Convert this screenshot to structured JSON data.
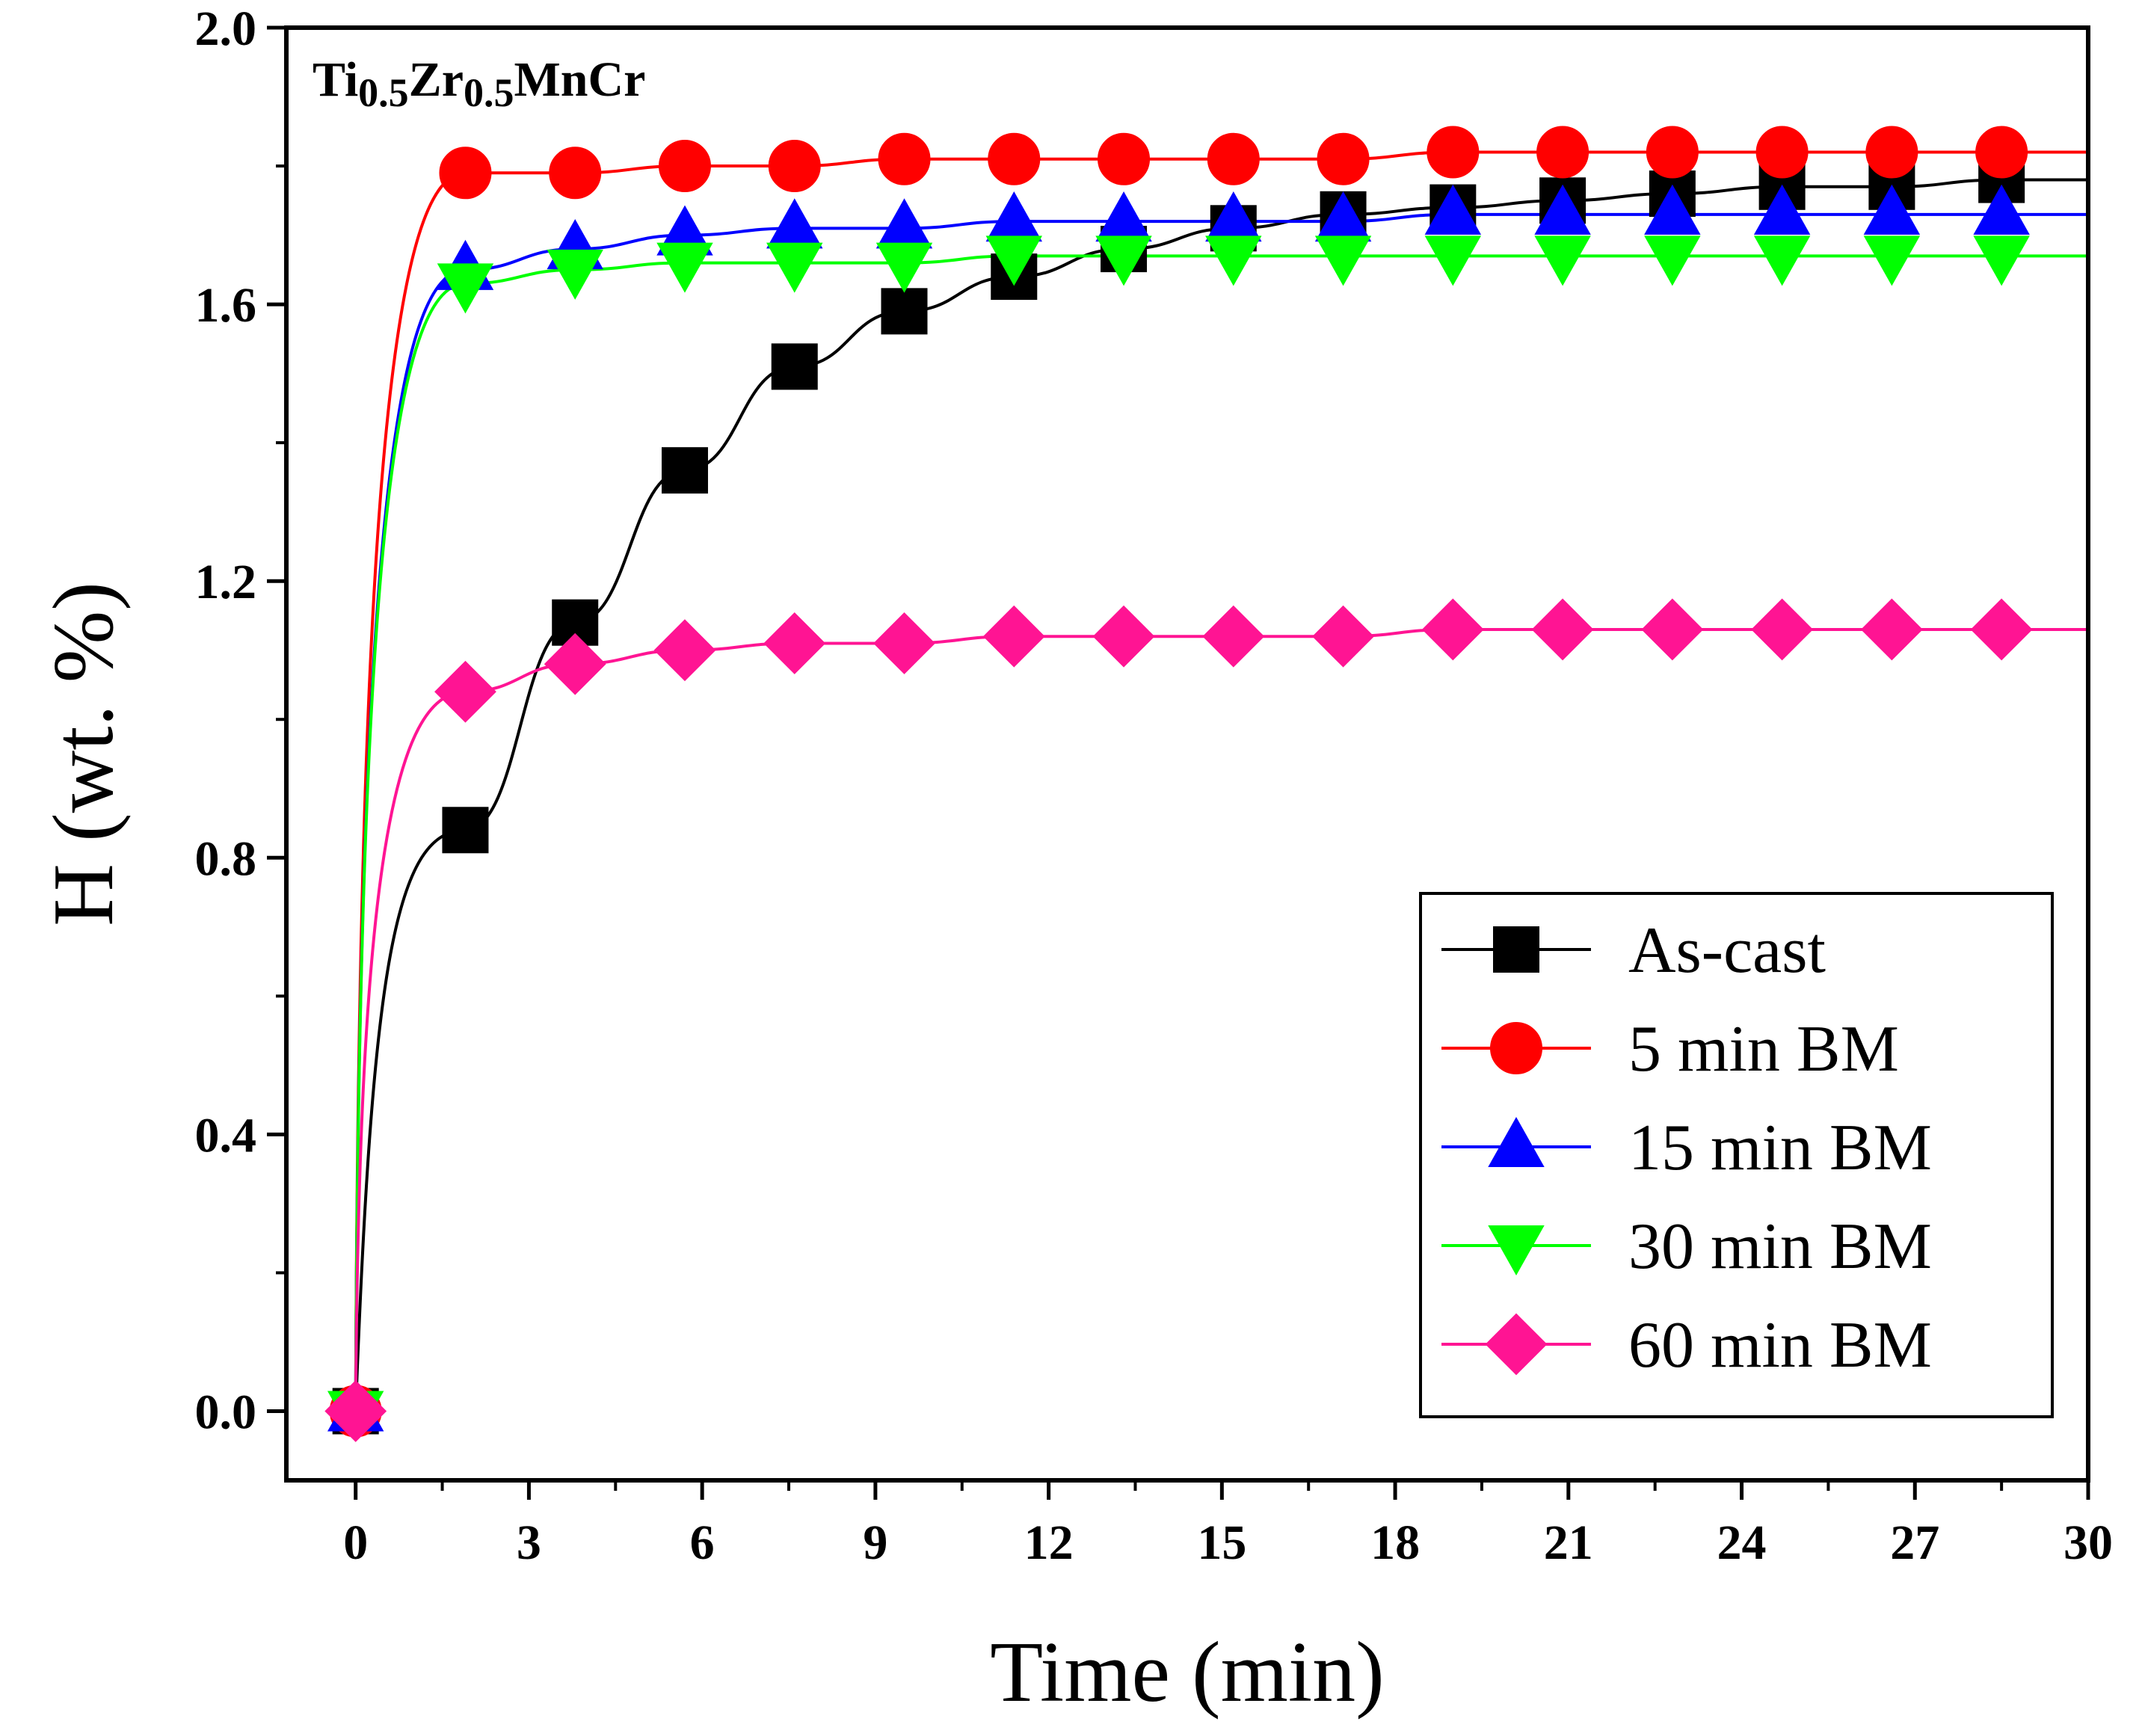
{
  "chart_data": {
    "type": "line",
    "annotation": {
      "parts": [
        {
          "text": "Ti",
          "sub": false
        },
        {
          "text": "0.5",
          "sub": true
        },
        {
          "text": "Zr",
          "sub": false
        },
        {
          "text": "0.5",
          "sub": true
        },
        {
          "text": "MnCr",
          "sub": false
        }
      ]
    },
    "xlabel": "Time (min)",
    "ylabel": "H (wt. %)",
    "xlim": [
      -1.2,
      30
    ],
    "ylim": [
      -0.1,
      2.0
    ],
    "x_ticks": [
      "0",
      "3",
      "6",
      "9",
      "12",
      "15",
      "18",
      "21",
      "24",
      "27",
      "30"
    ],
    "y_ticks": [
      "0.0",
      "0.4",
      "0.8",
      "1.2",
      "1.6",
      "2.0"
    ],
    "legend_position": "bottom-right",
    "marker_x": [
      0,
      1.9,
      3.8,
      5.7,
      7.6,
      9.5,
      11.4,
      13.3,
      15.2,
      17.1,
      19.0,
      20.9,
      22.8,
      24.7,
      26.6,
      28.5
    ],
    "series": [
      {
        "name": "As-cast",
        "color": "#000000",
        "marker": "square",
        "marker_y": [
          0,
          0.84,
          1.14,
          1.36,
          1.51,
          1.59,
          1.64,
          1.68,
          1.71,
          1.73,
          1.74,
          1.75,
          1.76,
          1.77,
          1.77,
          1.78
        ]
      },
      {
        "name": "5 min BM",
        "color": "#ff0000",
        "marker": "circle",
        "marker_y": [
          0,
          1.79,
          1.79,
          1.8,
          1.8,
          1.81,
          1.81,
          1.81,
          1.81,
          1.81,
          1.82,
          1.82,
          1.82,
          1.82,
          1.82,
          1.82
        ]
      },
      {
        "name": "15 min BM",
        "color": "#0000ff",
        "marker": "triangle-up",
        "marker_y": [
          0,
          1.65,
          1.68,
          1.7,
          1.71,
          1.71,
          1.72,
          1.72,
          1.72,
          1.72,
          1.73,
          1.73,
          1.73,
          1.73,
          1.73,
          1.73
        ]
      },
      {
        "name": "30 min BM",
        "color": "#00ff00",
        "marker": "triangle-down",
        "marker_y": [
          0,
          1.63,
          1.65,
          1.66,
          1.66,
          1.66,
          1.67,
          1.67,
          1.67,
          1.67,
          1.67,
          1.67,
          1.67,
          1.67,
          1.67,
          1.67
        ]
      },
      {
        "name": "60 min BM",
        "color": "#ff1493",
        "marker": "diamond",
        "marker_y": [
          0,
          1.04,
          1.08,
          1.1,
          1.11,
          1.11,
          1.12,
          1.12,
          1.12,
          1.12,
          1.13,
          1.13,
          1.13,
          1.13,
          1.13,
          1.13
        ]
      }
    ]
  }
}
